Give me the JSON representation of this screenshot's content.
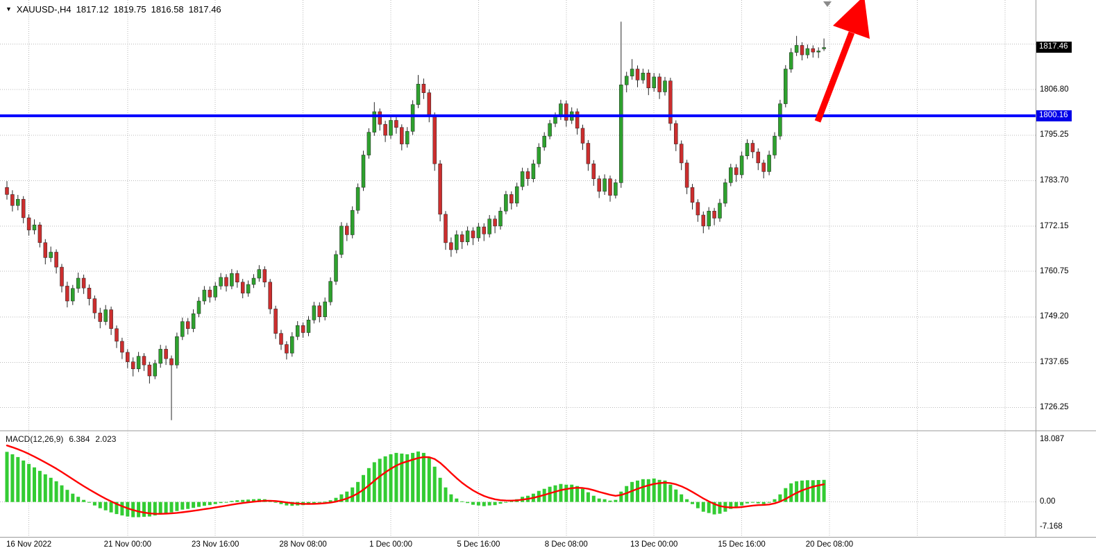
{
  "header": {
    "symbol_marker_icon": "▼",
    "symbol_period": "XAUUSD-,H4",
    "open": "1817.12",
    "high": "1819.75",
    "low": "1816.58",
    "close": "1817.46"
  },
  "macd_panel": {
    "label": "MACD(12,26,9)",
    "value_main": "6.384",
    "value_signal": "2.023",
    "axis_top": "18.087",
    "axis_zero": "0.00",
    "axis_bottom": "-7.168"
  },
  "price_axis": {
    "current_badge": "1817.46",
    "level_badge": "1800.16",
    "labels": [
      "1806.80",
      "1795.25",
      "1783.70",
      "1772.15",
      "1760.75",
      "1749.20",
      "1737.65",
      "1726.25"
    ]
  },
  "colors": {
    "background": "#ffffff",
    "grid": "#b8b8b8",
    "separator": "#9a9a9a",
    "bull": "#2EA12E",
    "bear": "#CC2E2E",
    "wick": "#262626",
    "level_line": "#0000FF",
    "arrow": "#FF0000",
    "macd_hist": "#33CC33",
    "macd_signal": "#FF0000",
    "badge_current_bg": "#000000",
    "badge_level_bg": "#0000E8",
    "shift_marker": "#8a8a8a"
  },
  "chart_data": [
    {
      "type": "candlestick",
      "title": "XAUUSD- H4",
      "symbol": "XAUUSD-",
      "timeframe": "H4",
      "ylim": [
        1720.5,
        1829.5
      ],
      "y_grid": [
        1818.35,
        1806.8,
        1795.25,
        1783.7,
        1772.15,
        1760.75,
        1749.2,
        1737.65,
        1726.25
      ],
      "x_ticks": [
        {
          "label": "16 Nov 2022",
          "bar": 4
        },
        {
          "label": "21 Nov 00:00",
          "bar": 22
        },
        {
          "label": "23 Nov 16:00",
          "bar": 38
        },
        {
          "label": "28 Nov 08:00",
          "bar": 54
        },
        {
          "label": "1 Dec 00:00",
          "bar": 70
        },
        {
          "label": "5 Dec 16:00",
          "bar": 86
        },
        {
          "label": "8 Dec 08:00",
          "bar": 102
        },
        {
          "label": "13 Dec 00:00",
          "bar": 118
        },
        {
          "label": "15 Dec 16:00",
          "bar": 134
        },
        {
          "label": "20 Dec 08:00",
          "bar": 150
        }
      ],
      "annotations": {
        "horizontal_line_price": 1800.16,
        "current_price": 1817.46,
        "trend_arrow": "up-right"
      },
      "ohlc": [
        [
          1782.0,
          1783.6,
          1778.9,
          1780.2
        ],
        [
          1780.2,
          1781.3,
          1775.9,
          1777.4
        ],
        [
          1777.4,
          1780.1,
          1776.2,
          1779.0
        ],
        [
          1779.0,
          1779.8,
          1772.9,
          1774.3
        ],
        [
          1774.3,
          1775.2,
          1769.8,
          1771.2
        ],
        [
          1771.2,
          1773.9,
          1770.1,
          1772.5
        ],
        [
          1772.5,
          1773.2,
          1766.8,
          1768.0
        ],
        [
          1768.0,
          1768.9,
          1762.5,
          1764.2
        ],
        [
          1764.2,
          1767.0,
          1763.1,
          1765.6
        ],
        [
          1765.6,
          1766.3,
          1760.2,
          1761.8
        ],
        [
          1761.8,
          1762.6,
          1755.4,
          1757.0
        ],
        [
          1757.0,
          1758.1,
          1751.6,
          1753.2
        ],
        [
          1753.2,
          1757.3,
          1752.2,
          1756.4
        ],
        [
          1756.4,
          1760.4,
          1755.3,
          1759.0
        ],
        [
          1759.0,
          1759.9,
          1755.0,
          1756.5
        ],
        [
          1756.5,
          1757.4,
          1752.1,
          1753.8
        ],
        [
          1753.8,
          1754.6,
          1748.7,
          1750.2
        ],
        [
          1750.2,
          1751.5,
          1746.3,
          1748.0
        ],
        [
          1748.0,
          1752.2,
          1747.1,
          1751.0
        ],
        [
          1751.0,
          1751.8,
          1744.6,
          1746.2
        ],
        [
          1746.2,
          1747.0,
          1741.3,
          1743.0
        ],
        [
          1743.0,
          1743.9,
          1738.5,
          1740.2
        ],
        [
          1740.2,
          1741.0,
          1736.2,
          1737.8
        ],
        [
          1737.8,
          1738.9,
          1734.1,
          1736.0
        ],
        [
          1736.0,
          1740.3,
          1735.2,
          1739.2
        ],
        [
          1739.2,
          1740.0,
          1735.5,
          1737.0
        ],
        [
          1737.0,
          1737.8,
          1732.3,
          1734.2
        ],
        [
          1734.2,
          1738.3,
          1733.4,
          1737.4
        ],
        [
          1737.4,
          1742.1,
          1736.3,
          1741.0
        ],
        [
          1741.0,
          1741.9,
          1737.0,
          1738.6
        ],
        [
          1738.6,
          1739.4,
          1723.0,
          1737.0
        ],
        [
          1737.0,
          1745.2,
          1736.1,
          1744.2
        ],
        [
          1744.2,
          1749.0,
          1743.3,
          1748.0
        ],
        [
          1748.0,
          1748.9,
          1744.7,
          1746.2
        ],
        [
          1746.2,
          1751.1,
          1745.3,
          1750.0
        ],
        [
          1750.0,
          1754.2,
          1749.1,
          1753.2
        ],
        [
          1753.2,
          1757.0,
          1752.3,
          1756.0
        ],
        [
          1756.0,
          1756.9,
          1752.8,
          1754.2
        ],
        [
          1754.2,
          1758.0,
          1753.3,
          1757.0
        ],
        [
          1757.0,
          1760.3,
          1756.1,
          1759.2
        ],
        [
          1759.2,
          1760.0,
          1755.6,
          1757.0
        ],
        [
          1757.0,
          1761.3,
          1756.2,
          1760.2
        ],
        [
          1760.2,
          1761.0,
          1756.6,
          1758.0
        ],
        [
          1758.0,
          1758.8,
          1753.9,
          1755.2
        ],
        [
          1755.2,
          1758.4,
          1754.3,
          1757.4
        ],
        [
          1757.4,
          1760.0,
          1756.5,
          1759.0
        ],
        [
          1759.0,
          1762.3,
          1758.1,
          1761.2
        ],
        [
          1761.2,
          1762.0,
          1756.7,
          1758.0
        ],
        [
          1758.0,
          1758.8,
          1749.9,
          1751.2
        ],
        [
          1751.2,
          1752.0,
          1743.6,
          1745.0
        ],
        [
          1745.0,
          1745.9,
          1740.8,
          1742.2
        ],
        [
          1742.2,
          1743.0,
          1738.4,
          1740.0
        ],
        [
          1740.0,
          1745.3,
          1739.1,
          1744.2
        ],
        [
          1744.2,
          1748.1,
          1743.3,
          1747.0
        ],
        [
          1747.0,
          1747.8,
          1743.9,
          1745.2
        ],
        [
          1745.2,
          1749.4,
          1744.3,
          1748.4
        ],
        [
          1748.4,
          1753.0,
          1747.5,
          1752.0
        ],
        [
          1752.0,
          1752.9,
          1747.8,
          1749.2
        ],
        [
          1749.2,
          1754.1,
          1748.3,
          1753.0
        ],
        [
          1753.0,
          1759.2,
          1752.1,
          1758.2
        ],
        [
          1758.2,
          1766.0,
          1757.3,
          1765.0
        ],
        [
          1765.0,
          1773.2,
          1764.1,
          1772.2
        ],
        [
          1772.2,
          1773.0,
          1768.4,
          1770.0
        ],
        [
          1770.0,
          1777.2,
          1769.1,
          1776.2
        ],
        [
          1776.2,
          1783.0,
          1775.3,
          1782.0
        ],
        [
          1782.0,
          1791.3,
          1781.1,
          1790.2
        ],
        [
          1790.2,
          1797.0,
          1789.3,
          1796.0
        ],
        [
          1796.0,
          1803.6,
          1795.1,
          1801.2
        ],
        [
          1801.2,
          1802.0,
          1796.4,
          1798.0
        ],
        [
          1798.0,
          1798.9,
          1793.5,
          1795.2
        ],
        [
          1795.2,
          1800.1,
          1794.3,
          1799.0
        ],
        [
          1799.0,
          1799.8,
          1795.6,
          1797.2
        ],
        [
          1797.2,
          1798.0,
          1791.4,
          1793.0
        ],
        [
          1793.0,
          1797.3,
          1792.1,
          1796.2
        ],
        [
          1796.2,
          1804.1,
          1795.3,
          1803.0
        ],
        [
          1803.0,
          1810.5,
          1802.1,
          1808.2
        ],
        [
          1808.2,
          1809.6,
          1804.4,
          1806.0
        ],
        [
          1806.0,
          1806.9,
          1798.5,
          1800.2
        ],
        [
          1800.2,
          1801.0,
          1786.2,
          1788.0
        ],
        [
          1788.0,
          1788.9,
          1773.4,
          1775.2
        ],
        [
          1775.2,
          1776.0,
          1766.2,
          1768.0
        ],
        [
          1768.0,
          1769.3,
          1764.4,
          1766.2
        ],
        [
          1766.2,
          1771.1,
          1765.3,
          1770.0
        ],
        [
          1770.0,
          1770.9,
          1766.4,
          1768.2
        ],
        [
          1768.2,
          1772.1,
          1767.3,
          1771.0
        ],
        [
          1771.0,
          1771.9,
          1767.4,
          1769.2
        ],
        [
          1769.2,
          1773.0,
          1768.3,
          1772.0
        ],
        [
          1772.0,
          1772.9,
          1768.4,
          1770.2
        ],
        [
          1770.2,
          1775.0,
          1769.3,
          1774.0
        ],
        [
          1774.0,
          1774.9,
          1770.4,
          1772.2
        ],
        [
          1772.2,
          1777.0,
          1771.3,
          1776.0
        ],
        [
          1776.0,
          1781.1,
          1775.2,
          1780.2
        ],
        [
          1780.2,
          1781.0,
          1776.4,
          1778.0
        ],
        [
          1778.0,
          1783.2,
          1777.1,
          1782.2
        ],
        [
          1782.2,
          1787.0,
          1781.3,
          1786.0
        ],
        [
          1786.0,
          1786.9,
          1782.4,
          1784.2
        ],
        [
          1784.2,
          1789.0,
          1783.3,
          1788.0
        ],
        [
          1788.0,
          1793.2,
          1787.1,
          1792.2
        ],
        [
          1792.2,
          1796.0,
          1791.3,
          1795.0
        ],
        [
          1795.0,
          1799.1,
          1794.2,
          1798.2
        ],
        [
          1798.2,
          1801.0,
          1797.3,
          1800.0
        ],
        [
          1800.0,
          1804.2,
          1799.1,
          1803.2
        ],
        [
          1803.2,
          1804.0,
          1797.4,
          1799.0
        ],
        [
          1799.0,
          1802.3,
          1798.1,
          1801.2
        ],
        [
          1801.2,
          1802.0,
          1795.4,
          1797.0
        ],
        [
          1797.0,
          1797.9,
          1791.5,
          1793.2
        ],
        [
          1793.2,
          1794.0,
          1786.2,
          1788.0
        ],
        [
          1788.0,
          1788.9,
          1782.4,
          1784.2
        ],
        [
          1784.2,
          1785.0,
          1779.3,
          1781.0
        ],
        [
          1781.0,
          1785.3,
          1780.1,
          1784.2
        ],
        [
          1784.2,
          1785.0,
          1778.4,
          1780.0
        ],
        [
          1780.0,
          1784.1,
          1779.2,
          1783.2
        ],
        [
          1783.2,
          1824.0,
          1781.9,
          1808.0
        ],
        [
          1808.0,
          1811.3,
          1806.1,
          1810.2
        ],
        [
          1810.2,
          1814.5,
          1809.3,
          1812.0
        ],
        [
          1812.0,
          1812.9,
          1807.4,
          1809.2
        ],
        [
          1809.2,
          1812.1,
          1808.3,
          1811.0
        ],
        [
          1811.0,
          1811.9,
          1805.4,
          1807.2
        ],
        [
          1807.2,
          1811.0,
          1806.3,
          1810.0
        ],
        [
          1810.0,
          1810.9,
          1804.4,
          1806.2
        ],
        [
          1806.2,
          1810.0,
          1805.3,
          1809.0
        ],
        [
          1809.0,
          1809.8,
          1796.4,
          1798.2
        ],
        [
          1798.2,
          1799.0,
          1791.2,
          1793.0
        ],
        [
          1793.0,
          1793.9,
          1786.4,
          1788.2
        ],
        [
          1788.2,
          1789.0,
          1780.3,
          1782.0
        ],
        [
          1782.0,
          1782.9,
          1776.4,
          1778.2
        ],
        [
          1778.2,
          1779.0,
          1773.3,
          1775.0
        ],
        [
          1775.0,
          1775.9,
          1770.4,
          1772.2
        ],
        [
          1772.2,
          1777.0,
          1771.3,
          1776.0
        ],
        [
          1776.0,
          1776.8,
          1772.4,
          1774.2
        ],
        [
          1774.2,
          1779.1,
          1773.3,
          1778.0
        ],
        [
          1778.0,
          1784.2,
          1777.1,
          1783.2
        ],
        [
          1783.2,
          1788.0,
          1782.3,
          1787.0
        ],
        [
          1787.0,
          1787.9,
          1783.4,
          1785.2
        ],
        [
          1785.2,
          1791.1,
          1784.3,
          1790.0
        ],
        [
          1790.0,
          1794.2,
          1789.1,
          1793.2
        ],
        [
          1793.2,
          1794.0,
          1789.4,
          1791.0
        ],
        [
          1791.0,
          1791.9,
          1786.4,
          1788.2
        ],
        [
          1788.2,
          1789.0,
          1784.3,
          1786.0
        ],
        [
          1786.0,
          1791.3,
          1785.1,
          1790.2
        ],
        [
          1790.2,
          1796.0,
          1789.3,
          1795.0
        ],
        [
          1795.0,
          1804.2,
          1794.1,
          1803.2
        ],
        [
          1803.2,
          1813.0,
          1802.3,
          1812.0
        ],
        [
          1812.0,
          1817.3,
          1811.1,
          1816.2
        ],
        [
          1816.2,
          1820.4,
          1815.3,
          1818.0
        ],
        [
          1818.0,
          1818.8,
          1814.2,
          1815.6
        ],
        [
          1815.6,
          1818.2,
          1814.7,
          1817.2
        ],
        [
          1817.2,
          1818.0,
          1814.9,
          1816.3
        ],
        [
          1816.3,
          1817.5,
          1814.8,
          1816.6
        ],
        [
          1817.12,
          1819.75,
          1816.58,
          1817.46
        ]
      ]
    },
    {
      "type": "bar",
      "title": "MACD(12,26,9)",
      "ylim": [
        -9.9,
        20.4
      ],
      "axis_ticks": [
        18.087,
        0.0,
        -7.168
      ],
      "values": [
        14.5,
        13.8,
        13.0,
        12.0,
        11.0,
        10.0,
        9.0,
        8.0,
        7.0,
        6.0,
        4.8,
        3.5,
        2.4,
        1.5,
        0.6,
        -0.2,
        -1.0,
        -1.8,
        -2.4,
        -3.0,
        -3.5,
        -3.9,
        -4.2,
        -4.4,
        -4.4,
        -4.3,
        -4.2,
        -3.9,
        -3.5,
        -3.2,
        -3.0,
        -2.6,
        -2.2,
        -2.0,
        -1.7,
        -1.4,
        -1.1,
        -0.9,
        -0.6,
        -0.3,
        0.0,
        0.3,
        0.5,
        0.6,
        0.7,
        0.8,
        0.9,
        0.8,
        0.4,
        -0.1,
        -0.6,
        -1.0,
        -1.1,
        -1.0,
        -0.9,
        -0.7,
        -0.4,
        -0.2,
        0.1,
        0.5,
        1.2,
        2.2,
        3.0,
        4.2,
        5.8,
        7.8,
        9.8,
        11.5,
        12.5,
        13.2,
        13.8,
        14.2,
        14.0,
        13.8,
        14.2,
        14.6,
        14.2,
        12.8,
        10.2,
        7.0,
        4.2,
        2.2,
        1.0,
        0.2,
        -0.3,
        -0.8,
        -1.0,
        -1.2,
        -1.0,
        -0.9,
        -0.5,
        0.0,
        0.3,
        0.8,
        1.5,
        1.8,
        2.4,
        3.2,
        3.8,
        4.4,
        4.8,
        5.2,
        5.0,
        5.0,
        4.6,
        3.8,
        2.8,
        1.8,
        1.0,
        0.8,
        0.4,
        0.6,
        3.0,
        4.6,
        5.8,
        6.2,
        6.6,
        6.6,
        6.8,
        6.4,
        6.2,
        5.0,
        3.6,
        2.2,
        0.8,
        -0.6,
        -1.8,
        -2.8,
        -3.2,
        -3.6,
        -3.4,
        -2.8,
        -2.0,
        -1.6,
        -1.0,
        -0.4,
        -0.2,
        -0.4,
        -0.6,
        -0.2,
        0.8,
        2.2,
        4.0,
        5.4,
        6.0,
        6.2,
        6.3,
        6.3,
        6.35,
        6.384
      ]
    }
  ]
}
